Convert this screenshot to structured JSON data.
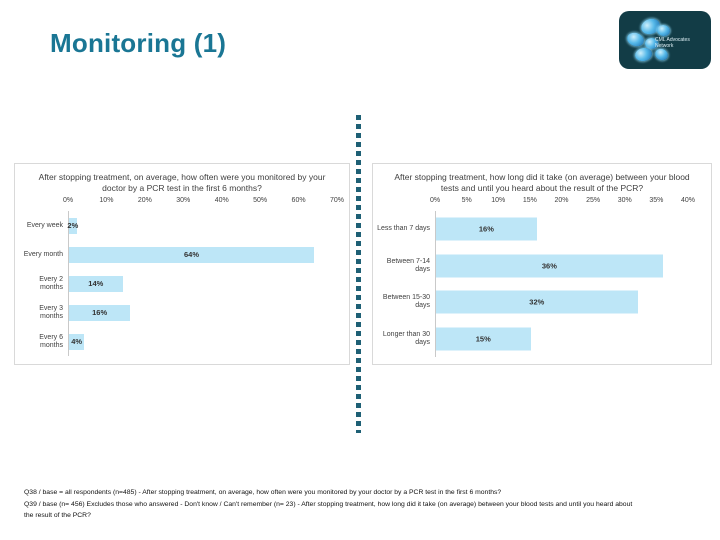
{
  "slide": {
    "title": "Monitoring (1)",
    "accent_color": "#1a7694"
  },
  "logo": {
    "text": "CML Advocates Network"
  },
  "chart_data": [
    {
      "type": "bar",
      "orientation": "horizontal",
      "title": "After stopping treatment, on average, how often were you monitored by your doctor by a PCR test in the first 6 months?",
      "categories": [
        "Every week",
        "Every month",
        "Every 2 months",
        "Every 3 months",
        "Every 6 months"
      ],
      "values": [
        2,
        64,
        14,
        16,
        4
      ],
      "value_labels": [
        "2%",
        "64%",
        "14%",
        "16%",
        "4%"
      ],
      "axis_ticks": [
        "0%",
        "10%",
        "20%",
        "30%",
        "40%",
        "50%",
        "60%",
        "70%"
      ],
      "xlim": [
        0,
        70
      ],
      "axis_position": "top",
      "grid": false,
      "legend": false,
      "bar_color": "#BDE6F7"
    },
    {
      "type": "bar",
      "orientation": "horizontal",
      "title": "After stopping treatment, how long did it take (on average) between your blood tests and until you heard about the result of the PCR?",
      "categories": [
        "Less than 7 days",
        "Between 7-14 days",
        "Between 15-30 days",
        "Longer than 30 days"
      ],
      "values": [
        16,
        36,
        32,
        15
      ],
      "value_labels": [
        "16%",
        "36%",
        "32%",
        "15%"
      ],
      "axis_ticks": [
        "0%",
        "5%",
        "10%",
        "15%",
        "20%",
        "25%",
        "30%",
        "35%",
        "40%"
      ],
      "xlim": [
        0,
        40
      ],
      "axis_position": "top",
      "grid": false,
      "legend": false,
      "bar_color": "#BDE6F7"
    }
  ],
  "footnotes": {
    "line1": "Q38 / base = all respondents (n=485) - After stopping treatment, on average, how often were you monitored by your doctor by a PCR test in the first 6 months?",
    "line2": "Q39 / base (n= 456) Excludes those who answered - Don't know / Can't remember (n= 23) - After stopping treatment, how long did it take (on average) between your blood tests and until you heard about",
    "line3": "the result of the PCR?"
  }
}
